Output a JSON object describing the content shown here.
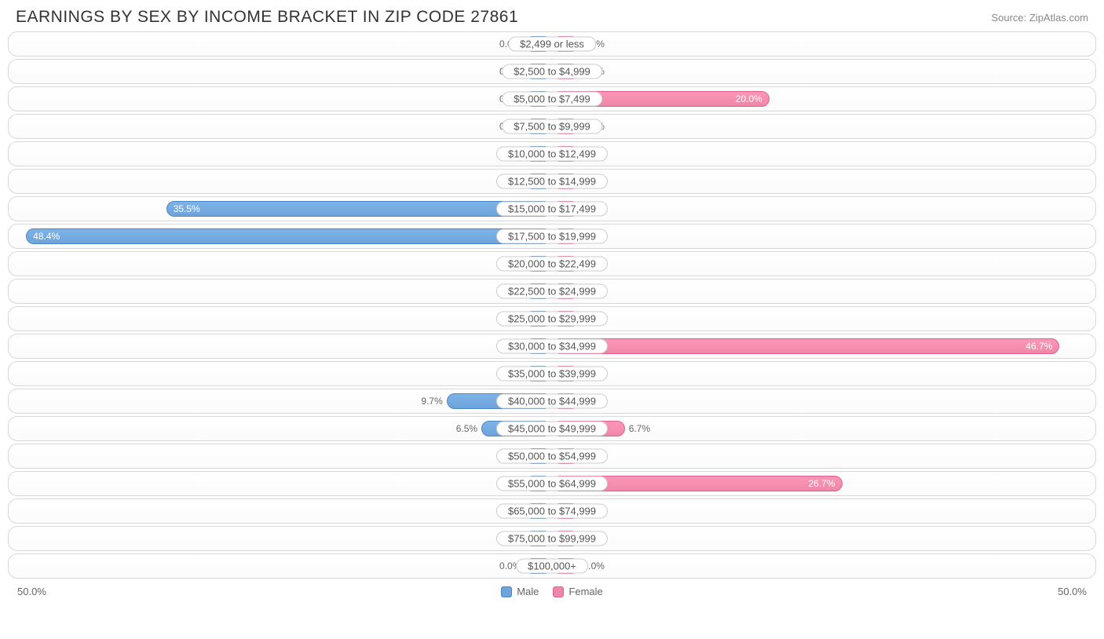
{
  "title": "EARNINGS BY SEX BY INCOME BRACKET IN ZIP CODE 27861",
  "source": "Source: ZipAtlas.com",
  "chart": {
    "type": "diverging-bar",
    "axis_max": 50.0,
    "axis_left_label": "50.0%",
    "axis_right_label": "50.0%",
    "male_color": "#6fa4db",
    "male_border": "#4a85c5",
    "female_color": "#ef87a9",
    "female_border": "#e25f8b",
    "row_border_color": "#d8d8d8",
    "label_bg": "#ffffff",
    "label_border": "#cccccc",
    "text_color": "#666666",
    "min_bar_pct": 5.0,
    "rows": [
      {
        "label": "$2,499 or less",
        "male": 0.0,
        "female": 0.0
      },
      {
        "label": "$2,500 to $4,999",
        "male": 0.0,
        "female": 0.0
      },
      {
        "label": "$5,000 to $7,499",
        "male": 0.0,
        "female": 20.0
      },
      {
        "label": "$7,500 to $9,999",
        "male": 0.0,
        "female": 0.0
      },
      {
        "label": "$10,000 to $12,499",
        "male": 0.0,
        "female": 0.0
      },
      {
        "label": "$12,500 to $14,999",
        "male": 0.0,
        "female": 0.0
      },
      {
        "label": "$15,000 to $17,499",
        "male": 35.5,
        "female": 0.0
      },
      {
        "label": "$17,500 to $19,999",
        "male": 48.4,
        "female": 0.0
      },
      {
        "label": "$20,000 to $22,499",
        "male": 0.0,
        "female": 0.0
      },
      {
        "label": "$22,500 to $24,999",
        "male": 0.0,
        "female": 0.0
      },
      {
        "label": "$25,000 to $29,999",
        "male": 0.0,
        "female": 0.0
      },
      {
        "label": "$30,000 to $34,999",
        "male": 0.0,
        "female": 46.7
      },
      {
        "label": "$35,000 to $39,999",
        "male": 0.0,
        "female": 0.0
      },
      {
        "label": "$40,000 to $44,999",
        "male": 9.7,
        "female": 0.0
      },
      {
        "label": "$45,000 to $49,999",
        "male": 6.5,
        "female": 6.7
      },
      {
        "label": "$50,000 to $54,999",
        "male": 0.0,
        "female": 0.0
      },
      {
        "label": "$55,000 to $64,999",
        "male": 0.0,
        "female": 26.7
      },
      {
        "label": "$65,000 to $74,999",
        "male": 0.0,
        "female": 0.0
      },
      {
        "label": "$75,000 to $99,999",
        "male": 0.0,
        "female": 0.0
      },
      {
        "label": "$100,000+",
        "male": 0.0,
        "female": 0.0
      }
    ]
  },
  "legend": {
    "male": "Male",
    "female": "Female"
  }
}
